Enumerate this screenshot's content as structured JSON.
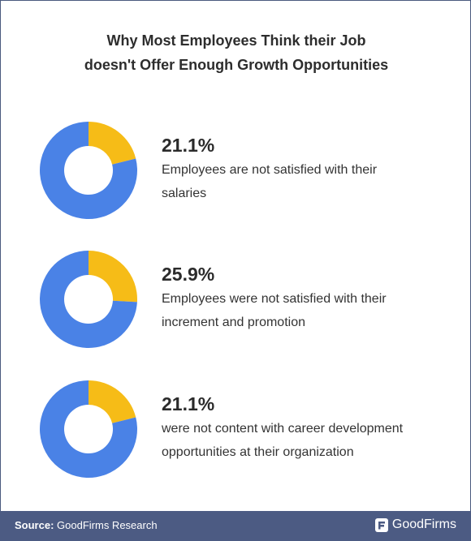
{
  "title": {
    "line1": "Why Most Employees Think their Job",
    "line2": "doesn't Offer Enough Growth Opportunities"
  },
  "colors": {
    "primary": "#4a82e6",
    "accent": "#f6bc17",
    "footer": "#4c5b83"
  },
  "chart_data": [
    {
      "type": "pie",
      "categories": [
        "Employees are not satisfied with their salaries",
        ""
      ],
      "values": [
        21.1,
        78.9
      ],
      "label": "21.1%",
      "description_lines": [
        "Employees are not satisfied with their",
        "salaries"
      ]
    },
    {
      "type": "pie",
      "categories": [
        "Employees were not satisfied with their increment and promotion",
        ""
      ],
      "values": [
        25.9,
        74.1
      ],
      "label": "25.9%",
      "description_lines": [
        "Employees were not satisfied with their",
        "increment and promotion"
      ]
    },
    {
      "type": "pie",
      "categories": [
        "were not content with career development opportunities at their organization",
        ""
      ],
      "values": [
        21.1,
        78.9
      ],
      "label": "21.1%",
      "description_lines": [
        "were not content with career development",
        "opportunities at their organization"
      ]
    }
  ],
  "footer": {
    "source_label": "Source:",
    "source_text": "GoodFirms Research",
    "brand": "GoodFirms"
  }
}
